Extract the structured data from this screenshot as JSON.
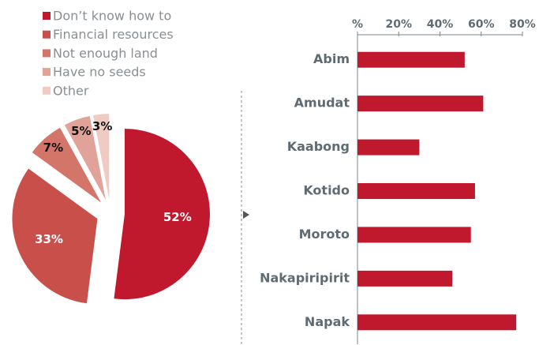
{
  "chart_data": [
    {
      "type": "pie",
      "categories": [
        "Don’t know how to",
        "Financial resources",
        "Not enough land",
        "Have no seeds",
        "Other"
      ],
      "values": [
        52,
        33,
        7,
        5,
        3
      ],
      "value_labels": [
        "52%",
        "33%",
        "7%",
        "5%",
        "3%"
      ],
      "colors": [
        "#c0192e",
        "#c9504a",
        "#d4756a",
        "#e0a299",
        "#efcbc4"
      ],
      "legend": "top-left"
    },
    {
      "type": "hbar",
      "categories": [
        "Abim",
        "Amudat",
        "Kaabong",
        "Kotido",
        "Moroto",
        "Nakapiripirit",
        "Napak"
      ],
      "values": [
        52,
        61,
        30,
        57,
        55,
        46,
        77
      ],
      "color": "#c0192e",
      "xlim": [
        0,
        80
      ],
      "xticks": [
        {
          "value": 0,
          "label": "%"
        },
        {
          "value": 20,
          "label": "20%"
        },
        {
          "value": 40,
          "label": "40%"
        },
        {
          "value": 60,
          "label": "60%"
        },
        {
          "value": 80,
          "label": "80%"
        }
      ]
    }
  ]
}
